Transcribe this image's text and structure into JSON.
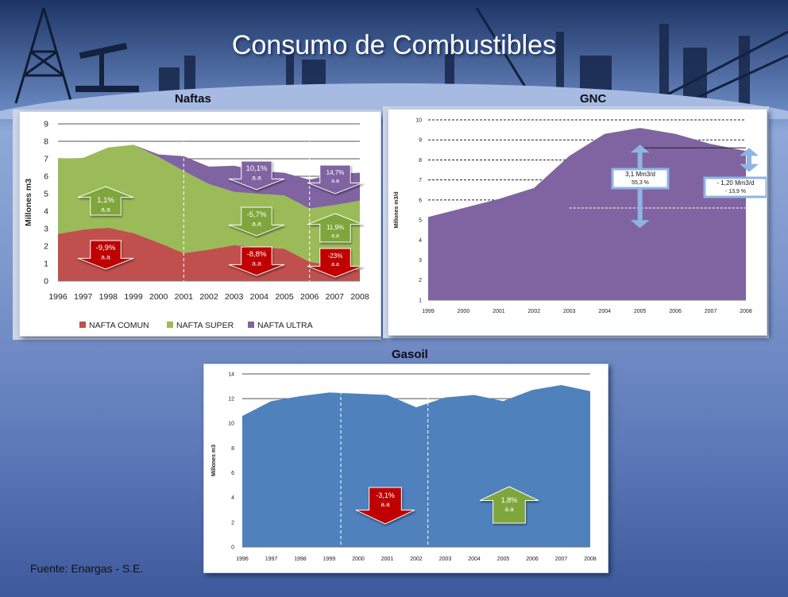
{
  "title": "Consumo de Combustibles",
  "source": "Fuente: Enargas - S.E.",
  "colors": {
    "nafta_comun": "#c0504d",
    "nafta_super": "#9bbb59",
    "nafta_ultra": "#8064a2",
    "gnc": "#8064a2",
    "gasoil": "#4f81bd",
    "arrow_green": "#7fa63c",
    "arrow_red": "#c00000",
    "arrow_blue": "#8db4e2"
  },
  "chart_data": [
    {
      "id": "naftas",
      "type": "area",
      "title": "Naftas",
      "ylabel": "Millones m3",
      "xlabel": "",
      "x": [
        "1996",
        "1997",
        "1998",
        "1999",
        "2000",
        "2001",
        "2002",
        "2003",
        "2004",
        "2005",
        "2006",
        "2007",
        "2008"
      ],
      "ylim": [
        0,
        9
      ],
      "yticks": [
        "0",
        "1",
        "2",
        "3",
        "4",
        "5",
        "6",
        "7",
        "8",
        "9"
      ],
      "grid": true,
      "legend_position": "bottom",
      "series": [
        {
          "name": "NAFTA COMUN",
          "values": [
            2.7,
            2.95,
            3.05,
            2.75,
            2.2,
            1.6,
            1.8,
            2.05,
            1.95,
            1.85,
            1.1,
            0.85,
            0.6
          ]
        },
        {
          "name": "NAFTA SUPER",
          "values": [
            4.3,
            4.1,
            4.6,
            5.05,
            4.9,
            4.7,
            3.75,
            3.05,
            3.05,
            3.05,
            3.05,
            3.5,
            4.0
          ]
        },
        {
          "name": "NAFTA ULTRA",
          "values": [
            0.0,
            0.0,
            0.0,
            0.0,
            0.15,
            0.85,
            1.0,
            1.5,
            1.3,
            1.3,
            1.65,
            1.8,
            1.6
          ]
        }
      ],
      "annotations": [
        {
          "text": "1,1%",
          "sub": "a.a",
          "direction": "up",
          "color": "green"
        },
        {
          "text": "-9,9%",
          "sub": "a.a",
          "direction": "down",
          "color": "red"
        },
        {
          "text": "10,1%",
          "sub": "a.a",
          "direction": "down",
          "color": "purple"
        },
        {
          "text": "-5,7%",
          "sub": "a.a",
          "direction": "down",
          "color": "green"
        },
        {
          "text": "-8,8%",
          "sub": "a.a",
          "direction": "down",
          "color": "red"
        },
        {
          "text": "14,7%",
          "sub": "a.a",
          "direction": "down",
          "color": "purple"
        },
        {
          "text": "11,9%",
          "sub": "a.a",
          "direction": "up",
          "color": "green"
        },
        {
          "text": "-23%",
          "sub": "a.a",
          "direction": "down",
          "color": "red"
        }
      ],
      "reference_lines": [
        "2001",
        "2006"
      ]
    },
    {
      "id": "gnc",
      "type": "area",
      "title": "GNC",
      "ylabel": "Millones m3/d",
      "xlabel": "",
      "x": [
        "1999",
        "2000",
        "2001",
        "2002",
        "2003",
        "2004",
        "2005",
        "2006",
        "2007",
        "2008"
      ],
      "ylim": [
        1,
        10
      ],
      "yticks": [
        "1",
        "2",
        "3",
        "4",
        "5",
        "6",
        "7",
        "8",
        "9",
        "10"
      ],
      "grid": true,
      "series": [
        {
          "name": "",
          "values": [
            4.15,
            4.6,
            5.05,
            5.6,
            7.2,
            8.3,
            8.6,
            8.3,
            7.8,
            7.45
          ]
        }
      ],
      "annotations": [
        {
          "text": "3,1 Mm3/d",
          "sub": "55,3 %"
        },
        {
          "text": "- 1,20 Mm3/d",
          "sub": "- 13,9 %"
        }
      ]
    },
    {
      "id": "gasoil",
      "type": "area",
      "title": "Gasoil",
      "ylabel": "Millones m3",
      "xlabel": "",
      "x": [
        "1996",
        "1997",
        "1998",
        "1999",
        "2000",
        "2001",
        "2002",
        "2003",
        "2004",
        "2005",
        "2006",
        "2007",
        "2008"
      ],
      "ylim": [
        0,
        14
      ],
      "yticks": [
        "0",
        "2",
        "4",
        "6",
        "8",
        "10",
        "12",
        "14"
      ],
      "grid": true,
      "series": [
        {
          "name": "",
          "values": [
            10.6,
            11.8,
            12.2,
            12.5,
            12.4,
            12.3,
            11.3,
            12.1,
            12.3,
            11.8,
            12.7,
            13.1,
            12.6
          ]
        }
      ],
      "annotations": [
        {
          "text": "-3,1%",
          "sub": "a.a",
          "direction": "down",
          "color": "red"
        },
        {
          "text": "1,8%",
          "sub": "a.a",
          "direction": "up",
          "color": "green"
        }
      ],
      "reference_lines": [
        "1999",
        "2002"
      ]
    }
  ]
}
